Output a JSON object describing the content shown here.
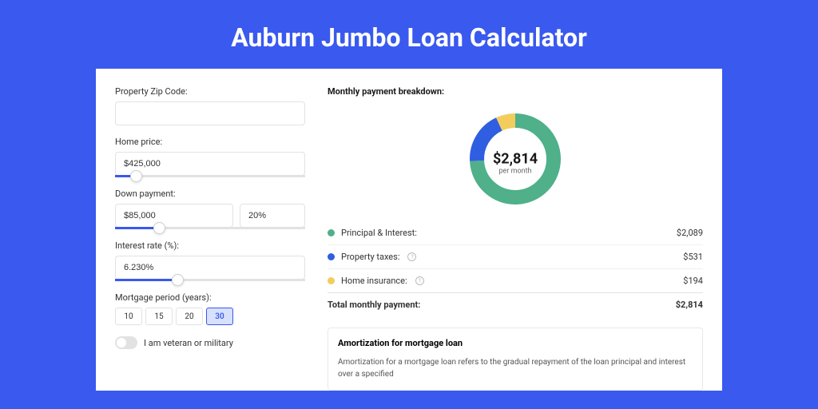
{
  "page": {
    "title": "Auburn Jumbo Loan Calculator"
  },
  "form": {
    "zip": {
      "label": "Property Zip Code:",
      "value": ""
    },
    "home_price": {
      "label": "Home price:",
      "value": "$425,000",
      "slider_pct": 8
    },
    "down_payment": {
      "label": "Down payment:",
      "value": "$85,000",
      "pct_value": "20%",
      "slider_pct": 20
    },
    "interest_rate": {
      "label": "Interest rate (%):",
      "value": "6.230%",
      "slider_pct": 30
    },
    "mortgage_period": {
      "label": "Mortgage period (years):",
      "options": [
        "10",
        "15",
        "20",
        "30"
      ],
      "selected": "30"
    },
    "veteran": {
      "label": "I am veteran or military",
      "on": false
    }
  },
  "breakdown": {
    "title": "Monthly payment breakdown:",
    "donut": {
      "amount": "$2,814",
      "sub": "per month",
      "series": [
        {
          "name": "principal_interest",
          "value": 2089,
          "color": "#4fb08a"
        },
        {
          "name": "property_taxes",
          "value": 531,
          "color": "#2f5fe0"
        },
        {
          "name": "home_insurance",
          "value": 194,
          "color": "#f2cd5d"
        }
      ]
    },
    "rows": [
      {
        "dot": "#4fb08a",
        "label": "Principal & Interest:",
        "help": false,
        "value": "$2,089"
      },
      {
        "dot": "#2f5fe0",
        "label": "Property taxes:",
        "help": true,
        "value": "$531"
      },
      {
        "dot": "#f2cd5d",
        "label": "Home insurance:",
        "help": true,
        "value": "$194"
      }
    ],
    "total": {
      "label": "Total monthly payment:",
      "value": "$2,814"
    }
  },
  "amort": {
    "title": "Amortization for mortgage loan",
    "text": "Amortization for a mortgage loan refers to the gradual repayment of the loan principal and interest over a specified"
  },
  "colors": {
    "bg": "#3959ef"
  }
}
